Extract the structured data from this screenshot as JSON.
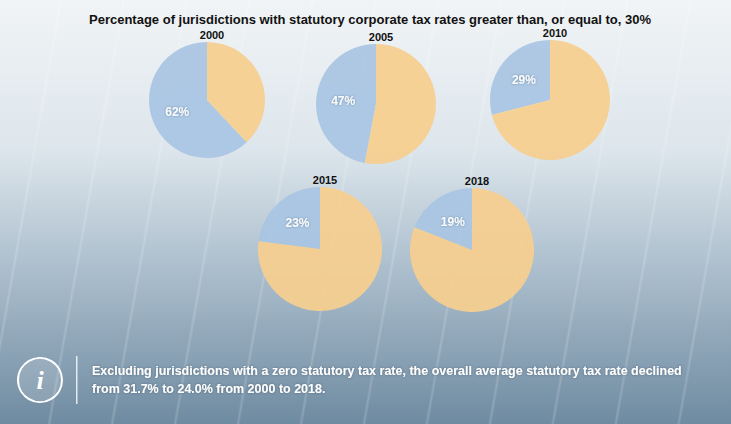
{
  "title": "Percentage of jurisdictions with statutory corporate tax rates greater than, or equal to, 30%",
  "annotation": {
    "icon": "i",
    "text": "Excluding jurisdictions with a zero statutory tax rate, the overall average statutory tax rate declined from 31.7% to 24.0% from 2000 to 2018."
  },
  "chart_data": [
    {
      "type": "pie",
      "title": "2000",
      "values": [
        62,
        38
      ],
      "value_labels": [
        "62%",
        null
      ],
      "colors": [
        "#a9c5e3",
        "#f6cf8f"
      ],
      "data_labels": true,
      "legend": false
    },
    {
      "type": "pie",
      "title": "2005",
      "values": [
        47,
        53
      ],
      "value_labels": [
        "47%",
        null
      ],
      "colors": [
        "#a9c5e3",
        "#f6cf8f"
      ],
      "data_labels": true,
      "legend": false
    },
    {
      "type": "pie",
      "title": "2010",
      "values": [
        29,
        71
      ],
      "value_labels": [
        "29%",
        null
      ],
      "colors": [
        "#a9c5e3",
        "#f6cf8f"
      ],
      "data_labels": true,
      "legend": false
    },
    {
      "type": "pie",
      "title": "2015",
      "values": [
        23,
        77
      ],
      "value_labels": [
        "23%",
        null
      ],
      "colors": [
        "#a9c5e3",
        "#f6cf8f"
      ],
      "data_labels": true,
      "legend": false
    },
    {
      "type": "pie",
      "title": "2018",
      "values": [
        19,
        81
      ],
      "value_labels": [
        "19%",
        null
      ],
      "colors": [
        "#a9c5e3",
        "#f6cf8f"
      ],
      "data_labels": true,
      "legend": false
    }
  ]
}
